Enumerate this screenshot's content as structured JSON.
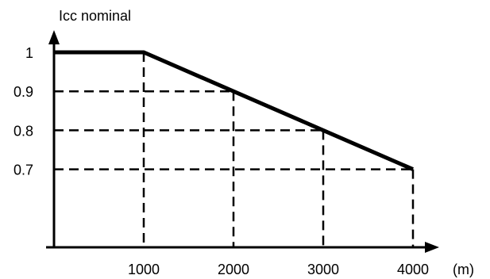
{
  "chart_data": {
    "type": "line",
    "title": "",
    "xlabel": "(m)",
    "ylabel": "Icc nominal",
    "x_ticks": [
      {
        "value": 1000,
        "label": "1000"
      },
      {
        "value": 2000,
        "label": "2000"
      },
      {
        "value": 3000,
        "label": "3000"
      },
      {
        "value": 4000,
        "label": "4000"
      }
    ],
    "y_ticks": [
      {
        "value": 1.0,
        "label": "1"
      },
      {
        "value": 0.9,
        "label": "0.9"
      },
      {
        "value": 0.8,
        "label": "0.8"
      },
      {
        "value": 0.7,
        "label": "0.7"
      }
    ],
    "xlim": [
      0,
      4000
    ],
    "ylim": [
      0.5,
      1.0
    ],
    "grid": false,
    "legend": "none",
    "series": [
      {
        "x": [
          0,
          1000,
          2000,
          3000,
          4000
        ],
        "y": [
          1.0,
          1.0,
          0.9,
          0.8,
          0.7
        ]
      }
    ],
    "guide_lines": "dashed lines from each marked point to both axes",
    "colors": {
      "line": "#000000",
      "axis": "#000000",
      "guides": "#000000"
    }
  }
}
